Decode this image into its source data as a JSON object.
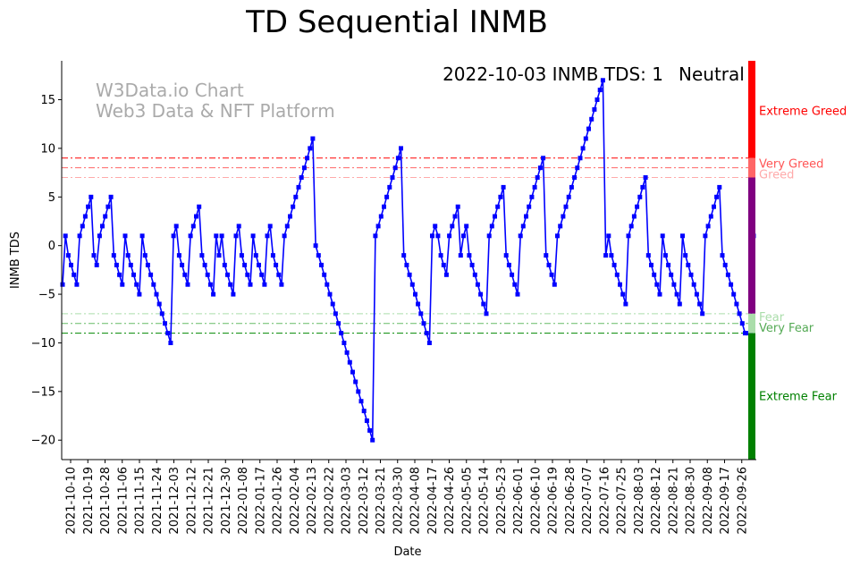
{
  "chart_data": {
    "type": "line",
    "title": "TD Sequential INMB",
    "xlabel": "Date",
    "ylabel": "INMB TDS",
    "ylim": [
      -22,
      19
    ],
    "yticks": [
      15,
      10,
      5,
      0,
      -5,
      -10,
      -15,
      -20
    ],
    "xticks": [
      "2021-10-10",
      "2021-10-19",
      "2021-10-28",
      "2021-11-06",
      "2021-11-15",
      "2021-11-24",
      "2021-12-03",
      "2021-12-12",
      "2021-12-21",
      "2021-12-30",
      "2022-01-08",
      "2022-01-17",
      "2022-01-26",
      "2022-02-04",
      "2022-02-13",
      "2022-02-22",
      "2022-03-03",
      "2022-03-12",
      "2022-03-21",
      "2022-03-30",
      "2022-04-08",
      "2022-04-17",
      "2022-04-26",
      "2022-05-05",
      "2022-05-14",
      "2022-05-23",
      "2022-06-01",
      "2022-06-10",
      "2022-06-19",
      "2022-06-28",
      "2022-07-07",
      "2022-07-16",
      "2022-07-25",
      "2022-08-03",
      "2022-08-12",
      "2022-08-21",
      "2022-08-30",
      "2022-09-08",
      "2022-09-17",
      "2022-09-26"
    ],
    "series": [
      {
        "name": "INMB TDS",
        "color": "#0000ff",
        "values": [
          -4,
          1,
          -1,
          -2,
          -3,
          -4,
          1,
          2,
          3,
          4,
          5,
          -1,
          -2,
          1,
          2,
          3,
          4,
          5,
          -1,
          -2,
          -3,
          -4,
          1,
          -1,
          -2,
          -3,
          -4,
          -5,
          1,
          -1,
          -2,
          -3,
          -4,
          -5,
          -6,
          -7,
          -8,
          -9,
          -10,
          1,
          2,
          -1,
          -2,
          -3,
          -4,
          1,
          2,
          3,
          4,
          -1,
          -2,
          -3,
          -4,
          -5,
          1,
          -1,
          1,
          -2,
          -3,
          -4,
          -5,
          1,
          2,
          -1,
          -2,
          -3,
          -4,
          1,
          -1,
          -2,
          -3,
          -4,
          1,
          2,
          -1,
          -2,
          -3,
          -4,
          1,
          2,
          3,
          4,
          5,
          6,
          7,
          8,
          9,
          10,
          11,
          0,
          -1,
          -2,
          -3,
          -4,
          -5,
          -6,
          -7,
          -8,
          -9,
          -10,
          -11,
          -12,
          -13,
          -14,
          -15,
          -16,
          -17,
          -18,
          -19,
          -20,
          1,
          2,
          3,
          4,
          5,
          6,
          7,
          8,
          9,
          10,
          -1,
          -2,
          -3,
          -4,
          -5,
          -6,
          -7,
          -8,
          -9,
          -10,
          1,
          2,
          1,
          -1,
          -2,
          -3,
          1,
          2,
          3,
          4,
          -1,
          1,
          2,
          -1,
          -2,
          -3,
          -4,
          -5,
          -6,
          -7,
          1,
          2,
          3,
          4,
          5,
          6,
          -1,
          -2,
          -3,
          -4,
          -5,
          1,
          2,
          3,
          4,
          5,
          6,
          7,
          8,
          9,
          -1,
          -2,
          -3,
          -4,
          1,
          2,
          3,
          4,
          5,
          6,
          7,
          8,
          9,
          10,
          11,
          12,
          13,
          14,
          15,
          16,
          17,
          -1,
          1,
          -1,
          -2,
          -3,
          -4,
          -5,
          -6,
          1,
          2,
          3,
          4,
          5,
          6,
          7,
          -1,
          -2,
          -3,
          -4,
          -5,
          1,
          -1,
          -2,
          -3,
          -4,
          -5,
          -6,
          1,
          -1,
          -2,
          -3,
          -4,
          -5,
          -6,
          -7,
          1,
          2,
          3,
          4,
          5,
          6,
          -1,
          -2,
          -3,
          -4,
          -5,
          -6,
          -7,
          -8,
          -9,
          -9,
          -9,
          1
        ]
      }
    ],
    "threshold_lines": [
      {
        "name": "Extreme Greed",
        "value": 9,
        "color": "#ff0000"
      },
      {
        "name": "Very Greed",
        "value": 8,
        "color": "#ff6666"
      },
      {
        "name": "Greed",
        "value": 7,
        "color": "#ffaaaa"
      },
      {
        "name": "Fear",
        "value": -7,
        "color": "#aaddaa"
      },
      {
        "name": "Very Fear",
        "value": -8,
        "color": "#66bb66"
      },
      {
        "name": "Extreme Fear",
        "value": -9,
        "color": "#008800"
      }
    ],
    "sentiment_bar": [
      {
        "from": 9,
        "to": 19,
        "color": "#ff0000"
      },
      {
        "from": 7,
        "to": 9,
        "color": "#ff6666"
      },
      {
        "from": -7,
        "to": 7,
        "color": "#800080"
      },
      {
        "from": -9,
        "to": -7,
        "color": "#aaddaa"
      },
      {
        "from": -22,
        "to": -9,
        "color": "#008000"
      }
    ],
    "zone_labels": [
      {
        "text": "Extreme Greed",
        "value": 13.8,
        "color": "#ff0000"
      },
      {
        "text": "Very Greed",
        "value": 8.4,
        "color": "#ff5555"
      },
      {
        "text": "Greed",
        "value": 7.3,
        "color": "#ffaaaa"
      },
      {
        "text": "Fear",
        "value": -7.4,
        "color": "#aaddaa"
      },
      {
        "text": "Very Fear",
        "value": -8.5,
        "color": "#55aa55"
      },
      {
        "text": "Extreme Fear",
        "value": -15.5,
        "color": "#008000"
      }
    ],
    "status_text": "2022-10-03 INMB TDS: 1",
    "status_label": "Neutral",
    "status_color": "#800080",
    "watermark_line1": "W3Data.io Chart",
    "watermark_line2": "Web3 Data & NFT Platform"
  }
}
